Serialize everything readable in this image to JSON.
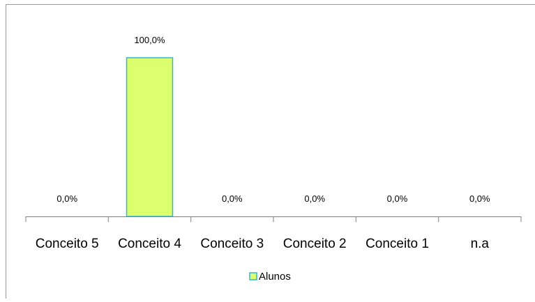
{
  "chart_data": {
    "type": "bar",
    "categories": [
      "Conceito 5",
      "Conceito 4",
      "Conceito 3",
      "Conceito 2",
      "Conceito 1",
      "n.a"
    ],
    "series": [
      {
        "name": "Alunos",
        "values": [
          0.0,
          100.0,
          0.0,
          0.0,
          0.0,
          0.0
        ],
        "labels": [
          "0,0%",
          "100,0%",
          "0,0%",
          "0,0%",
          "0,0%",
          "0,0%"
        ],
        "fill_color": "#dcff6e",
        "border_color": "#2fb6d8"
      }
    ],
    "ylim": [
      0,
      100
    ],
    "grid": false,
    "legend_position": "bottom",
    "axis_color": "#7f7f7f",
    "frame_color": "#9a9a9a"
  }
}
